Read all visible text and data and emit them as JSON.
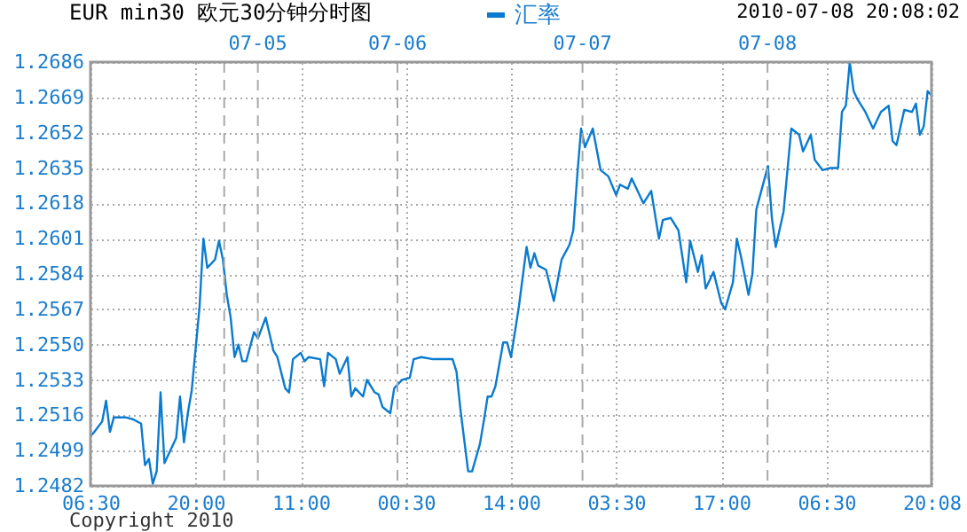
{
  "chart_data": {
    "type": "line",
    "title": "EUR min30  欧元30分钟分时图",
    "subtitle": "2010-07-08 20:08:02",
    "annotations": [
      "Copyright 2010",
      "07-05",
      "07-06",
      "07-07",
      "07-08"
    ],
    "categories": [
      "06:30",
      null,
      null,
      null,
      null,
      null,
      null,
      null,
      null,
      null,
      null,
      null,
      null,
      null,
      null,
      null,
      null,
      null,
      null,
      null,
      null,
      null,
      null,
      null,
      null,
      null,
      null,
      "20:00",
      null,
      null,
      null,
      null,
      null,
      null,
      null,
      null,
      null,
      null,
      null,
      null,
      null,
      null,
      null,
      null,
      null,
      null,
      null,
      null,
      null,
      null,
      null,
      null,
      null,
      null,
      "11:00",
      null,
      null,
      null,
      null,
      null,
      null,
      null,
      null,
      null,
      null,
      null,
      null,
      null,
      null,
      null,
      null,
      null,
      null,
      null,
      null,
      null,
      null,
      null,
      null,
      null,
      null,
      "00:30",
      null,
      null,
      null,
      null,
      null,
      null,
      null,
      null,
      null,
      null,
      null,
      null,
      null,
      null,
      null,
      null,
      null,
      null,
      null,
      null,
      null,
      null,
      null,
      null,
      null,
      null,
      "14:00",
      null,
      null,
      null,
      null,
      null,
      null,
      null,
      null,
      null,
      null,
      null,
      null,
      null,
      null,
      null,
      null,
      null,
      null,
      null,
      null,
      null,
      null,
      null,
      null,
      null,
      null,
      "03:30",
      null,
      null,
      null,
      null,
      null,
      null,
      null,
      null,
      null,
      null,
      null,
      null,
      null,
      null,
      null,
      null,
      null,
      null,
      null,
      null,
      null,
      null,
      null,
      null,
      null,
      null,
      "17:00",
      null,
      null,
      null,
      null,
      null,
      null,
      null,
      null,
      null,
      null,
      null,
      null,
      null,
      null,
      null,
      null,
      null,
      null,
      null,
      null,
      null,
      null,
      null,
      null,
      null,
      null,
      "06:30",
      null,
      null,
      null,
      null,
      null,
      null,
      null,
      null,
      null,
      null,
      null,
      null,
      null,
      null,
      null,
      null,
      null,
      null,
      null,
      null,
      null,
      null,
      null,
      null,
      null,
      null,
      "20:08"
    ],
    "series": [
      {
        "name": "汇率",
        "color": "#0a7bcf",
        "values": [
          1.2506,
          1.2508,
          null,
          1.2513,
          1.2523,
          1.2508,
          1.2515,
          null,
          null,
          1.2515,
          null,
          1.2514,
          null,
          1.2512,
          1.2492,
          1.2495,
          1.2483,
          1.2489,
          1.2527,
          1.2493,
          null,
          null,
          1.2505,
          1.2525,
          1.2503,
          1.2517,
          1.2528,
          null,
          1.2568,
          1.2601,
          1.2587,
          null,
          1.2591,
          1.26,
          1.2591,
          1.2574,
          1.2563,
          1.2544,
          1.255,
          1.2542,
          1.2542,
          null,
          1.2556,
          1.2553,
          null,
          1.2563,
          null,
          1.2547,
          1.2544,
          null,
          1.2529,
          1.2527,
          1.2543,
          null,
          1.2546,
          1.2542,
          1.2544,
          null,
          null,
          1.2543,
          1.253,
          1.2546,
          null,
          1.2543,
          1.2536,
          null,
          1.2544,
          1.2525,
          1.2529,
          null,
          1.2525,
          1.2533,
          null,
          1.2527,
          1.2526,
          1.252,
          null,
          1.2517,
          1.2529,
          null,
          1.2533,
          null,
          1.2534,
          1.2543,
          null,
          1.2544,
          null,
          null,
          1.2543,
          null,
          null,
          1.2543,
          null,
          1.2543,
          1.2537,
          1.2519,
          null,
          1.2489,
          1.2489,
          null,
          1.2502,
          1.2513,
          1.2525,
          1.2525,
          1.253,
          null,
          1.2551,
          1.2551,
          1.2544,
          null,
          1.2568,
          null,
          1.2597,
          1.2587,
          1.2594,
          1.2588,
          null,
          1.2586,
          null,
          1.2571,
          null,
          1.2591,
          null,
          1.2598,
          1.2605,
          1.2631,
          1.2654,
          1.2645,
          null,
          1.2654,
          null,
          1.2634,
          null,
          1.2631,
          null,
          1.2622,
          1.2627,
          null,
          1.2625,
          1.263,
          null,
          null,
          1.2618,
          null,
          1.2624,
          null,
          1.2601,
          1.261,
          null,
          1.2611,
          null,
          1.2605,
          null,
          1.258,
          1.26,
          null,
          1.2585,
          1.2593,
          1.2577,
          null,
          1.2585,
          null,
          1.257,
          1.2567,
          null,
          1.258,
          1.2601,
          1.2593,
          null,
          1.2574,
          1.2584,
          1.2615,
          null,
          null,
          1.2636,
          1.2611,
          1.2597,
          null,
          1.2614,
          null,
          1.2654,
          null,
          1.2651,
          1.2643,
          null,
          1.2651,
          1.2639,
          null,
          1.2634,
          null,
          1.2635,
          null,
          1.2635,
          1.2662,
          1.2665,
          1.2686,
          1.2672,
          1.2668,
          null,
          1.2662,
          null,
          1.2654,
          null,
          1.2662,
          null,
          1.2665,
          1.2648,
          1.2646,
          null,
          1.2663,
          null,
          1.2662,
          1.2666,
          1.2651,
          1.2655,
          1.2672,
          1.267
        ]
      }
    ],
    "ylim": [
      1.2482,
      1.2686
    ],
    "yticks": [
      1.2482,
      1.2499,
      1.2516,
      1.2533,
      {
        "value": 1.255,
        "label": "1.2550"
      },
      1.2567,
      1.2584,
      1.2601,
      1.2618,
      1.2635,
      1.2652,
      1.2669,
      1.2686
    ],
    "grid": true,
    "legend": "top"
  }
}
